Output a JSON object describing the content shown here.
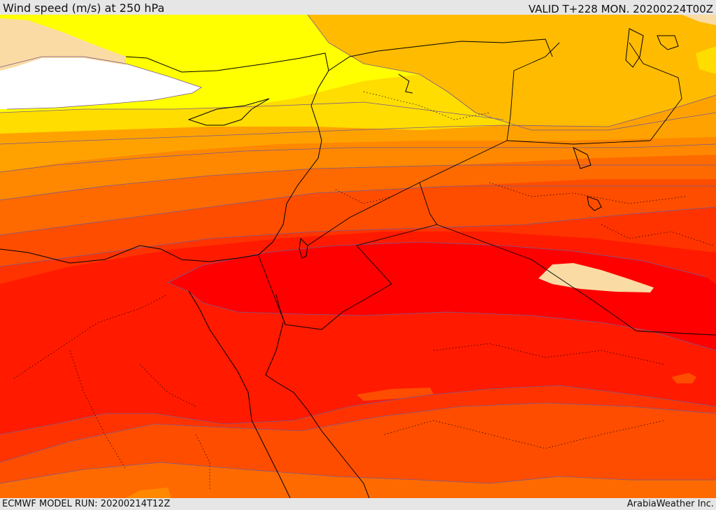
{
  "header": {
    "title": "Wind speed (m/s) at 250 hPa",
    "valid_time": "VALID T+228 MON. 20200224T00Z"
  },
  "footer": {
    "model_run": "ECMWF MODEL RUN: 20200214T12Z",
    "credit": "ArabiaWeather Inc."
  },
  "map": {
    "variable": "Wind speed at 250 hPa",
    "unit": "m/s",
    "shading_colors": [
      "#ffffff",
      "#fadba3",
      "#ffff00",
      "#ffdd00",
      "#ffbb00",
      "#ffa200",
      "#ff8800",
      "#ff6a00",
      "#ff4d00",
      "#ff3300",
      "#ff1a00",
      "#ff0000"
    ],
    "features": [
      "wind-speed-contours",
      "coastlines",
      "country-borders",
      "province-borders"
    ]
  }
}
